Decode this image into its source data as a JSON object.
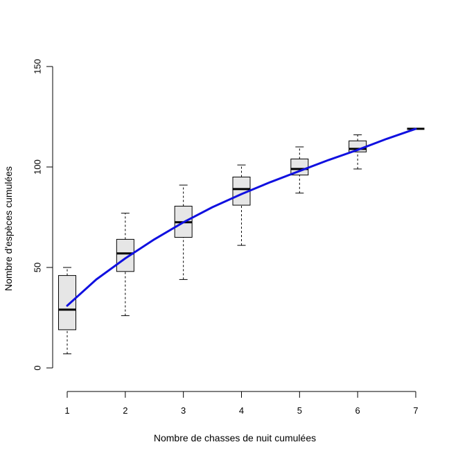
{
  "chart_data": {
    "type": "box",
    "title": "",
    "xlabel": "Nombre de chasses de nuit cumulées",
    "ylabel": "Nombre d'espèces cumulées",
    "ylim": [
      0,
      150
    ],
    "x_ticks": [
      1,
      2,
      3,
      4,
      5,
      6,
      7
    ],
    "y_ticks": [
      0,
      50,
      100,
      150
    ],
    "grid": false,
    "boxes": [
      {
        "x": 1,
        "whisker_low": 7,
        "q1": 19,
        "median": 29,
        "q3": 46,
        "whisker_high": 50
      },
      {
        "x": 2,
        "whisker_low": 26,
        "q1": 48,
        "median": 57,
        "q3": 64,
        "whisker_high": 77
      },
      {
        "x": 3,
        "whisker_low": 44,
        "q1": 65,
        "median": 72.5,
        "q3": 80.5,
        "whisker_high": 91
      },
      {
        "x": 4,
        "whisker_low": 61,
        "q1": 81,
        "median": 89,
        "q3": 95,
        "whisker_high": 101
      },
      {
        "x": 5,
        "whisker_low": 87,
        "q1": 96,
        "median": 99,
        "q3": 104,
        "whisker_high": 110
      },
      {
        "x": 6,
        "whisker_low": 99,
        "q1": 107.5,
        "median": 109,
        "q3": 113,
        "whisker_high": 116
      },
      {
        "x": 7,
        "whisker_low": 119,
        "q1": 119,
        "median": 119,
        "q3": 119,
        "whisker_high": 119
      }
    ],
    "fit_curve": {
      "color": "#1010e0",
      "x": [
        1,
        1.5,
        2,
        2.5,
        3,
        3.5,
        4,
        4.5,
        5,
        5.5,
        6,
        6.5,
        7
      ],
      "y": [
        31,
        44,
        54.5,
        64,
        72.5,
        80,
        86.5,
        92.5,
        98,
        103.5,
        108.5,
        114,
        119
      ]
    },
    "box_fill": "#e6e6e6"
  }
}
